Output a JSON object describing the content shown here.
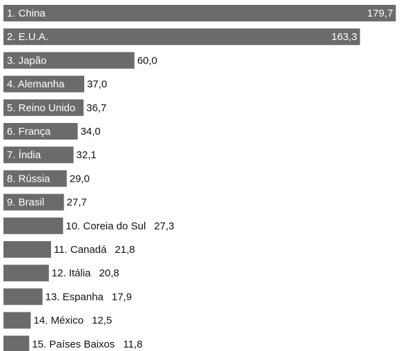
{
  "chart_data": {
    "type": "bar",
    "orientation": "horizontal",
    "title": "",
    "xlabel": "",
    "ylabel": "",
    "xlim": [
      0,
      183
    ],
    "grid": false,
    "colors": {
      "bar": "#6b6b6b"
    },
    "categories": [
      "1. China",
      "2. E.U.A.",
      "3. Japão",
      "4. Alemanha",
      "5. Reino Unido",
      "6. França",
      "7. Índia",
      "8. Rússia",
      "9. Brasil",
      "10. Coreia do Sul",
      "11. Canadá",
      "12. Itália",
      "13. Espanha",
      "14. México",
      "15. Países Baixos"
    ],
    "values": [
      179.7,
      163.3,
      60.0,
      37.0,
      36.7,
      34.0,
      32.1,
      29.0,
      27.7,
      27.3,
      21.8,
      20.8,
      17.9,
      12.5,
      11.8
    ],
    "value_labels": [
      "179,7",
      "163,3",
      "60,0",
      "37,0",
      "36,7",
      "34,0",
      "32,1",
      "29,0",
      "27,7",
      "27,3",
      "21,8",
      "20,8",
      "17,9",
      "12,5",
      "11,8"
    ]
  }
}
